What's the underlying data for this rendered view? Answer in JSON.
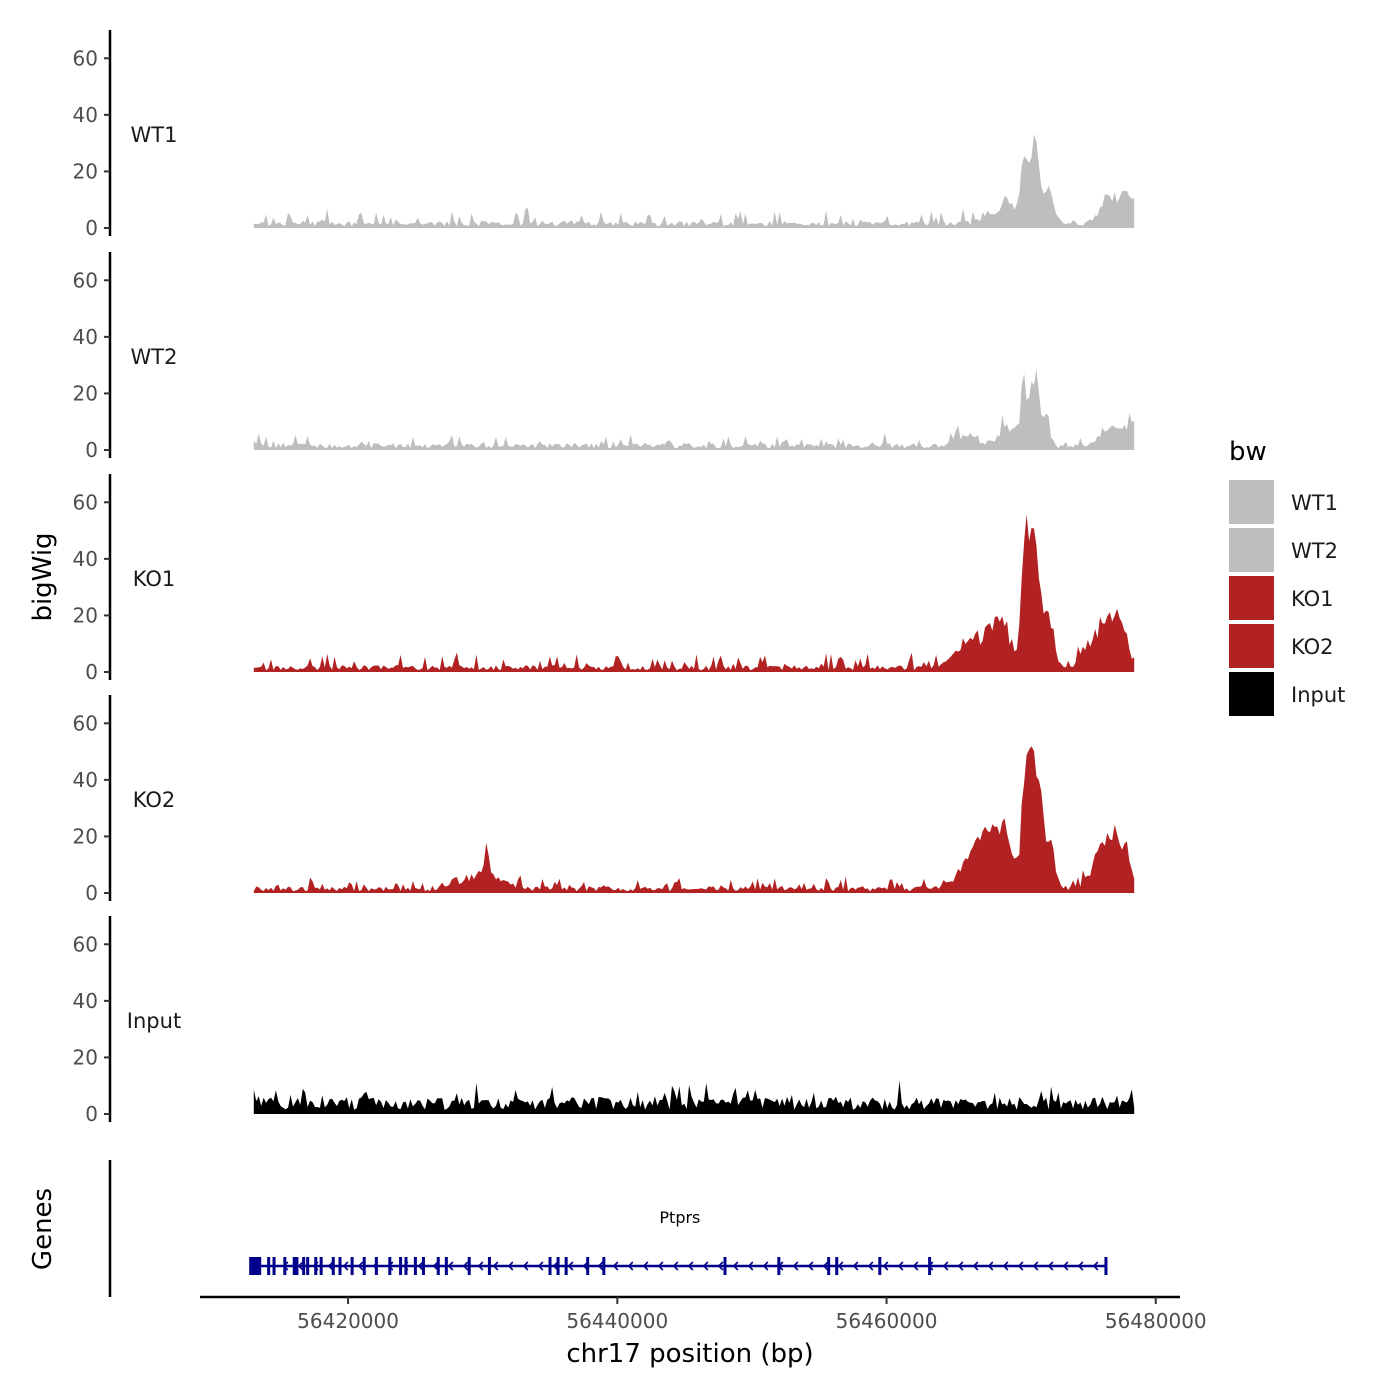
{
  "chart_data": {
    "type": "area",
    "chromosome": "chr17",
    "region": {
      "start": 56413000,
      "end": 56478400
    },
    "x_axis": {
      "label": "chr17 position (bp)",
      "ticks": [
        56420000,
        56440000,
        56460000,
        56480000
      ],
      "tick_labels": [
        "56420000",
        "56440000",
        "56460000",
        "56480000"
      ],
      "range": [
        56409000,
        56481800
      ]
    },
    "y_axis": {
      "label": "bigWig",
      "ticks": [
        0,
        20,
        40,
        60
      ],
      "tick_labels": [
        "0",
        "20",
        "40",
        "60"
      ],
      "range": [
        0,
        70
      ]
    },
    "genes_axis_label": "Genes",
    "legend": {
      "title": "bw",
      "items": [
        {
          "label": "WT1",
          "color": "#bebebe"
        },
        {
          "label": "WT2",
          "color": "#bebebe"
        },
        {
          "label": "KO1",
          "color": "#b22222"
        },
        {
          "label": "KO2",
          "color": "#b22222"
        },
        {
          "label": "Input",
          "color": "#000000"
        }
      ]
    },
    "series": [
      {
        "name": "WT1",
        "color": "#bebebe",
        "baseline": 2,
        "noise": 5,
        "seed": 11,
        "peaks": [
          [
            56467500,
            3,
            500
          ],
          [
            56469000,
            8,
            600
          ],
          [
            56470200,
            22,
            250
          ],
          [
            56471000,
            30,
            300
          ],
          [
            56472000,
            12,
            400
          ],
          [
            56476500,
            10,
            600
          ],
          [
            56478000,
            12,
            500
          ]
        ]
      },
      {
        "name": "WT2",
        "color": "#bebebe",
        "baseline": 2,
        "noise": 4,
        "seed": 23,
        "peaks": [
          [
            56466000,
            4,
            800
          ],
          [
            56469000,
            7,
            600
          ],
          [
            56470200,
            20,
            250
          ],
          [
            56471000,
            25,
            300
          ],
          [
            56471800,
            10,
            300
          ],
          [
            56476500,
            6,
            600
          ],
          [
            56478000,
            7,
            500
          ]
        ]
      },
      {
        "name": "KO1",
        "color": "#b22222",
        "baseline": 2,
        "noise": 5,
        "seed": 37,
        "peaks": [
          [
            56466500,
            10,
            1200
          ],
          [
            56468500,
            15,
            700
          ],
          [
            56470300,
            38,
            300
          ],
          [
            56471000,
            42,
            350
          ],
          [
            56472000,
            16,
            450
          ],
          [
            56475500,
            10,
            800
          ],
          [
            56477000,
            18,
            700
          ]
        ]
      },
      {
        "name": "KO2",
        "color": "#b22222",
        "baseline": 2,
        "noise": 4,
        "seed": 53,
        "peaks": [
          [
            56430000,
            6,
            1200
          ],
          [
            56430300,
            10,
            120
          ],
          [
            56467000,
            15,
            1200
          ],
          [
            56468800,
            15,
            800
          ],
          [
            56470400,
            42,
            300
          ],
          [
            56471200,
            40,
            400
          ],
          [
            56472200,
            12,
            400
          ],
          [
            56476000,
            12,
            800
          ],
          [
            56477300,
            16,
            700
          ]
        ]
      },
      {
        "name": "Input",
        "color": "#000000",
        "baseline": 5,
        "noise": 6,
        "seed": 71,
        "peaks": []
      }
    ],
    "genes": [
      {
        "name": "Ptprs",
        "start": 56413000,
        "end": 56476300,
        "strand": "-",
        "color": "#00008b",
        "exons": [
          56413100,
          56413400,
          56414100,
          56414500,
          56415300,
          56416000,
          56416200,
          56416700,
          56417000,
          56417600,
          56418000,
          56418900,
          56419400,
          56420300,
          56421200,
          56422100,
          56423100,
          56423900,
          56424300,
          56425000,
          56425600,
          56426700,
          56427300,
          56429000,
          56430500,
          56435000,
          56435600,
          56436200,
          56437800,
          56439000,
          56448000,
          56452000,
          56455700,
          56456300,
          56459500,
          56463200,
          56476300
        ]
      }
    ]
  }
}
